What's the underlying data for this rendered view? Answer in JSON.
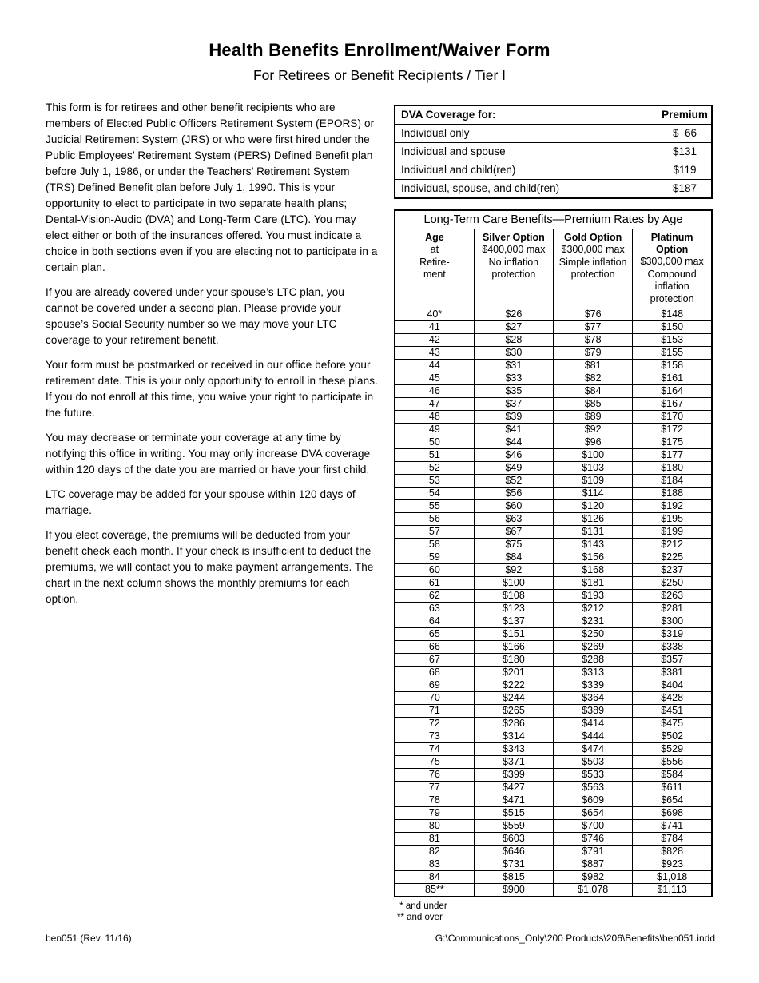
{
  "header": {
    "title": "Health Benefits Enrollment/Waiver Form",
    "subtitle": "For Retirees or Benefit Recipients / Tier I"
  },
  "intro": {
    "paragraphs": [
      "This form is for retirees and other benefit recipients who are members of Elected Public Officers Retirement System (EPORS) or Judicial Retirement System (JRS) or who were first hired under the Public Employees’ Retirement System (PERS) Defined Benefit plan before July 1, 1986, or under the Teachers’ Retirement System (TRS) Defined Benefit plan before July 1, 1990. This is your opportunity to elect to participate in two separate health plans; Dental-Vision-Audio (DVA) and Long-Term Care (LTC). You may elect either or both of the insurances offered. You must indicate a choice in both sections even if you are electing not to participate in a certain plan.",
      "If you are already covered under your spouse’s LTC plan, you cannot be covered under a second plan. Please provide your spouse’s Social Security number so we may move your LTC coverage to your retirement benefit.",
      "Your form must be postmarked or received in our office before your retirement date. This is your only opportunity to enroll in these plans. If you do not enroll at this time, you waive your right to participate in the future.",
      "You may decrease or terminate your coverage at any time by notifying this office in writing. You may only increase DVA coverage within 120 days of the date you are married or have your first child.",
      "LTC coverage may be added for your spouse within 120 days of marriage.",
      "If you elect coverage, the premiums will be deducted from your benefit check each month. If your check is insufficient to deduct the premiums, we will contact you to make payment arrangements. The chart in the next column shows the monthly premiums for each option."
    ]
  },
  "dva_table": {
    "headers": [
      "DVA Coverage for:",
      "Premium"
    ],
    "rows": [
      [
        "Individual only",
        "$  66"
      ],
      [
        "Individual and spouse",
        "$131"
      ],
      [
        "Individual and child(ren)",
        "$119"
      ],
      [
        "Individual, spouse, and child(ren)",
        "$187"
      ]
    ]
  },
  "ltc_table": {
    "title": "Long-Term Care Benefits—Premium Rates by Age",
    "columns": [
      {
        "name": "Age",
        "sub": [
          "at",
          "Retire-",
          "ment"
        ]
      },
      {
        "name": "Silver Option",
        "sub": [
          "$400,000 max",
          "No inflation",
          "protection"
        ]
      },
      {
        "name": "Gold Option",
        "sub": [
          "$300,000 max",
          "Simple inflation",
          "protection"
        ]
      },
      {
        "name": "Platinum Option",
        "sub": [
          "$300,000 max",
          "Compound",
          "inflation protection"
        ]
      }
    ],
    "rows": [
      [
        "40*",
        "$26",
        "$76",
        "$148"
      ],
      [
        "41",
        "$27",
        "$77",
        "$150"
      ],
      [
        "42",
        "$28",
        "$78",
        "$153"
      ],
      [
        "43",
        "$30",
        "$79",
        "$155"
      ],
      [
        "44",
        "$31",
        "$81",
        "$158"
      ],
      [
        "45",
        "$33",
        "$82",
        "$161"
      ],
      [
        "46",
        "$35",
        "$84",
        "$164"
      ],
      [
        "47",
        "$37",
        "$85",
        "$167"
      ],
      [
        "48",
        "$39",
        "$89",
        "$170"
      ],
      [
        "49",
        "$41",
        "$92",
        "$172"
      ],
      [
        "50",
        "$44",
        "$96",
        "$175"
      ],
      [
        "51",
        "$46",
        "$100",
        "$177"
      ],
      [
        "52",
        "$49",
        "$103",
        "$180"
      ],
      [
        "53",
        "$52",
        "$109",
        "$184"
      ],
      [
        "54",
        "$56",
        "$114",
        "$188"
      ],
      [
        "55",
        "$60",
        "$120",
        "$192"
      ],
      [
        "56",
        "$63",
        "$126",
        "$195"
      ],
      [
        "57",
        "$67",
        "$131",
        "$199"
      ],
      [
        "58",
        "$75",
        "$143",
        "$212"
      ],
      [
        "59",
        "$84",
        "$156",
        "$225"
      ],
      [
        "60",
        "$92",
        "$168",
        "$237"
      ],
      [
        "61",
        "$100",
        "$181",
        "$250"
      ],
      [
        "62",
        "$108",
        "$193",
        "$263"
      ],
      [
        "63",
        "$123",
        "$212",
        "$281"
      ],
      [
        "64",
        "$137",
        "$231",
        "$300"
      ],
      [
        "65",
        "$151",
        "$250",
        "$319"
      ],
      [
        "66",
        "$166",
        "$269",
        "$338"
      ],
      [
        "67",
        "$180",
        "$288",
        "$357"
      ],
      [
        "68",
        "$201",
        "$313",
        "$381"
      ],
      [
        "69",
        "$222",
        "$339",
        "$404"
      ],
      [
        "70",
        "$244",
        "$364",
        "$428"
      ],
      [
        "71",
        "$265",
        "$389",
        "$451"
      ],
      [
        "72",
        "$286",
        "$414",
        "$475"
      ],
      [
        "73",
        "$314",
        "$444",
        "$502"
      ],
      [
        "74",
        "$343",
        "$474",
        "$529"
      ],
      [
        "75",
        "$371",
        "$503",
        "$556"
      ],
      [
        "76",
        "$399",
        "$533",
        "$584"
      ],
      [
        "77",
        "$427",
        "$563",
        "$611"
      ],
      [
        "78",
        "$471",
        "$609",
        "$654"
      ],
      [
        "79",
        "$515",
        "$654",
        "$698"
      ],
      [
        "80",
        "$559",
        "$700",
        "$741"
      ],
      [
        "81",
        "$603",
        "$746",
        "$784"
      ],
      [
        "82",
        "$646",
        "$791",
        "$828"
      ],
      [
        "83",
        "$731",
        "$887",
        "$923"
      ],
      [
        "84",
        "$815",
        "$982",
        "$1,018"
      ],
      [
        "85**",
        "$900",
        "$1,078",
        "$1,113"
      ]
    ],
    "footnotes": [
      " * and under",
      "** and over"
    ]
  },
  "footer": {
    "left": "ben051 (Rev. 11/16)",
    "right": "G:\\Communications_Only\\200 Products\\206\\Benefits\\ben051.indd"
  }
}
